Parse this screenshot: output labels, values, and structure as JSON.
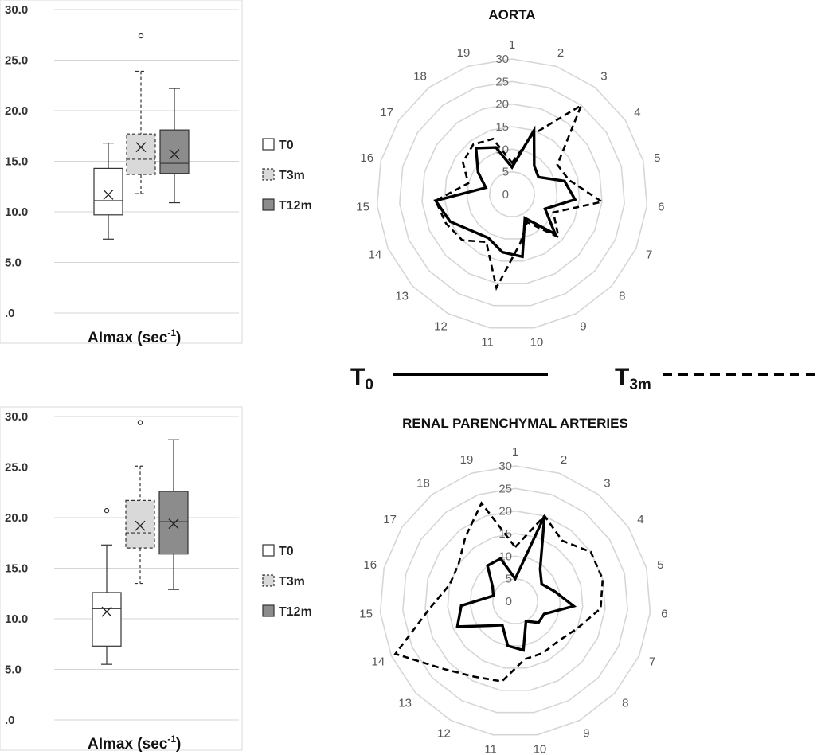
{
  "chart_data": [
    {
      "type": "boxplot",
      "xlabel_main": "AImax (sec",
      "xlabel_sup": "-1",
      "xlabel_end": ")",
      "ylim": [
        0,
        30
      ],
      "yticks": [
        ".0",
        "5.0",
        "10.0",
        "15.0",
        "20.0",
        "25.0",
        "30.0"
      ],
      "grid": true,
      "legend": {
        "placement": "right",
        "entries": [
          "T0",
          "T3m",
          "T12m"
        ]
      },
      "boxes": [
        {
          "name": "T0",
          "style": "solid",
          "fill": "#ffffff",
          "min": 7.3,
          "q1": 9.7,
          "median": 11.1,
          "q3": 14.3,
          "max": 16.8,
          "mean": 11.7,
          "outliers": []
        },
        {
          "name": "T3m",
          "style": "dashed",
          "fill": "#d9d9d9",
          "min": 11.8,
          "q1": 13.7,
          "median": 15.2,
          "q3": 17.7,
          "max": 23.9,
          "mean": 16.4,
          "outliers": [
            27.4
          ]
        },
        {
          "name": "T12m",
          "style": "solid",
          "fill": "#8c8c8c",
          "min": 10.9,
          "q1": 13.8,
          "median": 14.8,
          "q3": 18.1,
          "max": 22.2,
          "mean": 15.7,
          "outliers": []
        }
      ]
    },
    {
      "type": "radar",
      "title": "AORTA",
      "rmax": 30,
      "rticks": [
        "0",
        "5",
        "10",
        "15",
        "20",
        "25",
        "30"
      ],
      "spokes": [
        "1",
        "2",
        "3",
        "4",
        "5",
        "6",
        "7",
        "8",
        "9",
        "10",
        "11",
        "12",
        "13",
        "14",
        "15",
        "16",
        "17",
        "18",
        "19"
      ],
      "series": [
        {
          "name": "T0",
          "style": "solid",
          "values": [
            6,
            15,
            8,
            7,
            12,
            14,
            8,
            13,
            6,
            14,
            13,
            11,
            12,
            15,
            17,
            6,
            9,
            13,
            11
          ]
        },
        {
          "name": "T3m",
          "style": "dashed",
          "values": [
            7,
            14,
            25,
            12,
            13,
            20,
            10,
            14,
            7,
            11,
            21,
            12,
            15,
            16,
            17,
            10,
            13,
            14,
            13
          ]
        }
      ]
    },
    {
      "type": "boxplot",
      "xlabel_main": "AImax (sec",
      "xlabel_sup": "-1",
      "xlabel_end": ")",
      "ylim": [
        0,
        30
      ],
      "yticks": [
        ".0",
        "5.0",
        "10.0",
        "15.0",
        "20.0",
        "25.0",
        "30.0"
      ],
      "grid": true,
      "legend": {
        "placement": "right",
        "entries": [
          "T0",
          "T3m",
          "T12m"
        ]
      },
      "boxes": [
        {
          "name": "T0",
          "style": "solid",
          "fill": "#ffffff",
          "min": 5.5,
          "q1": 7.3,
          "median": 11.0,
          "q3": 12.6,
          "max": 17.3,
          "mean": 10.7,
          "outliers": [
            20.7
          ]
        },
        {
          "name": "T3m",
          "style": "dashed",
          "fill": "#d9d9d9",
          "min": 13.5,
          "q1": 17.0,
          "median": 18.5,
          "q3": 21.7,
          "max": 25.1,
          "mean": 19.2,
          "outliers": [
            29.4
          ]
        },
        {
          "name": "T12m",
          "style": "solid",
          "fill": "#8c8c8c",
          "min": 12.9,
          "q1": 16.4,
          "median": 19.6,
          "q3": 22.6,
          "max": 27.7,
          "mean": 19.4,
          "outliers": []
        }
      ]
    },
    {
      "type": "radar",
      "title": "RENAL PARENCHYMAL ARTERIES",
      "rmax": 30,
      "rticks": [
        "0",
        "5",
        "10",
        "15",
        "20",
        "25",
        "30"
      ],
      "spokes": [
        "1",
        "2",
        "3",
        "4",
        "5",
        "6",
        "7",
        "8",
        "9",
        "10",
        "11",
        "12",
        "13",
        "14",
        "15",
        "16",
        "17",
        "18",
        "19"
      ],
      "series": [
        {
          "name": "T0",
          "style": "solid",
          "values": [
            5,
            20,
            9,
            7,
            9,
            13,
            7,
            7,
            5,
            11,
            10,
            6,
            8,
            14,
            12,
            5,
            6,
            10,
            10
          ]
        },
        {
          "name": "T3m",
          "style": "dashed",
          "values": [
            12,
            20,
            17,
            20,
            20,
            19,
            15,
            13,
            13,
            13,
            18,
            19,
            22,
            29,
            19,
            15,
            15,
            18,
            23
          ]
        }
      ]
    }
  ],
  "legend_main": {
    "t0_main": "T",
    "t0_sub": "0",
    "t3_main": "T",
    "t3_sub": "3m"
  }
}
